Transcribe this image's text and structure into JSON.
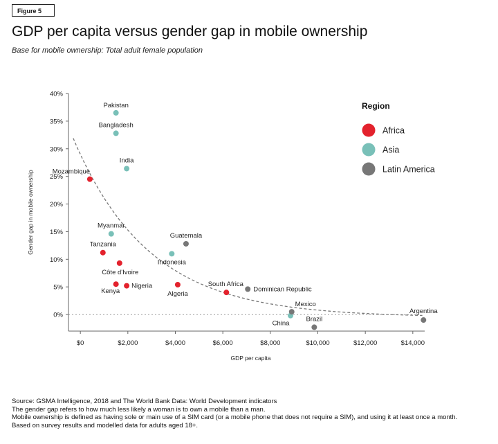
{
  "figure_label": "Figure 5",
  "title": "GDP per capita versus gender gap in mobile ownership",
  "subtitle": "Base for mobile ownership: Total adult female population",
  "colors": {
    "Africa": "#e3222d",
    "Asia": "#79c0b8",
    "Latin America": "#777777",
    "trend": "#777777",
    "axis": "#666666"
  },
  "chart_data": {
    "type": "scatter",
    "title": "",
    "xlabel": "GDP per capita",
    "ylabel": "Gender gap in mobile ownership",
    "xlim": [
      -500,
      14500
    ],
    "ylim": [
      -3,
      40
    ],
    "x_ticks": [
      0,
      2000,
      4000,
      6000,
      8000,
      10000,
      12000,
      14000
    ],
    "x_tick_labels": [
      "$0",
      "$2,000",
      "$4,000",
      "$6,000",
      "$8,000",
      "$10,000",
      "$12,000",
      "$14,000"
    ],
    "y_ticks": [
      0,
      5,
      10,
      15,
      20,
      25,
      30,
      35,
      40
    ],
    "y_tick_labels": [
      "0%",
      "5%",
      "10%",
      "15%",
      "20%",
      "25%",
      "30%",
      "35%",
      "40%"
    ],
    "legend_title": "Region",
    "legend_position": "top-right",
    "grid": false,
    "series": [
      {
        "name": "Africa",
        "points": [
          {
            "label": "Mozambique",
            "x": 400,
            "y": 24.5
          },
          {
            "label": "Tanzania",
            "x": 950,
            "y": 11.2
          },
          {
            "label": "Côte d'Ivoire",
            "x": 1650,
            "y": 9.3
          },
          {
            "label": "Kenya",
            "x": 1500,
            "y": 5.5
          },
          {
            "label": "Nigeria",
            "x": 1950,
            "y": 5.2
          },
          {
            "label": "Algeria",
            "x": 4100,
            "y": 5.4
          },
          {
            "label": "South Africa",
            "x": 6150,
            "y": 4.0
          }
        ]
      },
      {
        "name": "Asia",
        "points": [
          {
            "label": "Pakistan",
            "x": 1500,
            "y": 36.5
          },
          {
            "label": "Bangladesh",
            "x": 1500,
            "y": 32.8
          },
          {
            "label": "India",
            "x": 1950,
            "y": 26.4
          },
          {
            "label": "Myanmar",
            "x": 1300,
            "y": 14.6
          },
          {
            "label": "Indonesia",
            "x": 3850,
            "y": 11.0
          },
          {
            "label": "China",
            "x": 8850,
            "y": -0.2
          }
        ]
      },
      {
        "name": "Latin America",
        "points": [
          {
            "label": "Guatemala",
            "x": 4450,
            "y": 12.8
          },
          {
            "label": "Dominican Republic",
            "x": 7050,
            "y": 4.6
          },
          {
            "label": "Mexico",
            "x": 8900,
            "y": 0.5
          },
          {
            "label": "Brazil",
            "x": 9850,
            "y": -2.3
          },
          {
            "label": "Argentina",
            "x": 14450,
            "y": -1.0
          }
        ]
      }
    ],
    "trend_line": {
      "style": "dashed",
      "x_range": [
        -300,
        14400
      ]
    }
  },
  "footnotes": [
    "Source: GSMA Intelligence, 2018 and The World Bank Data: World Development indicators",
    "The gender gap refers to how much less likely a woman is to own a mobile than a man.",
    "Mobile ownership is defined as having sole or main use of a SIM card (or a mobile phone that does not require a SIM), and using it at least once a month.",
    "Based on survey results and modelled data for adults aged 18+."
  ]
}
